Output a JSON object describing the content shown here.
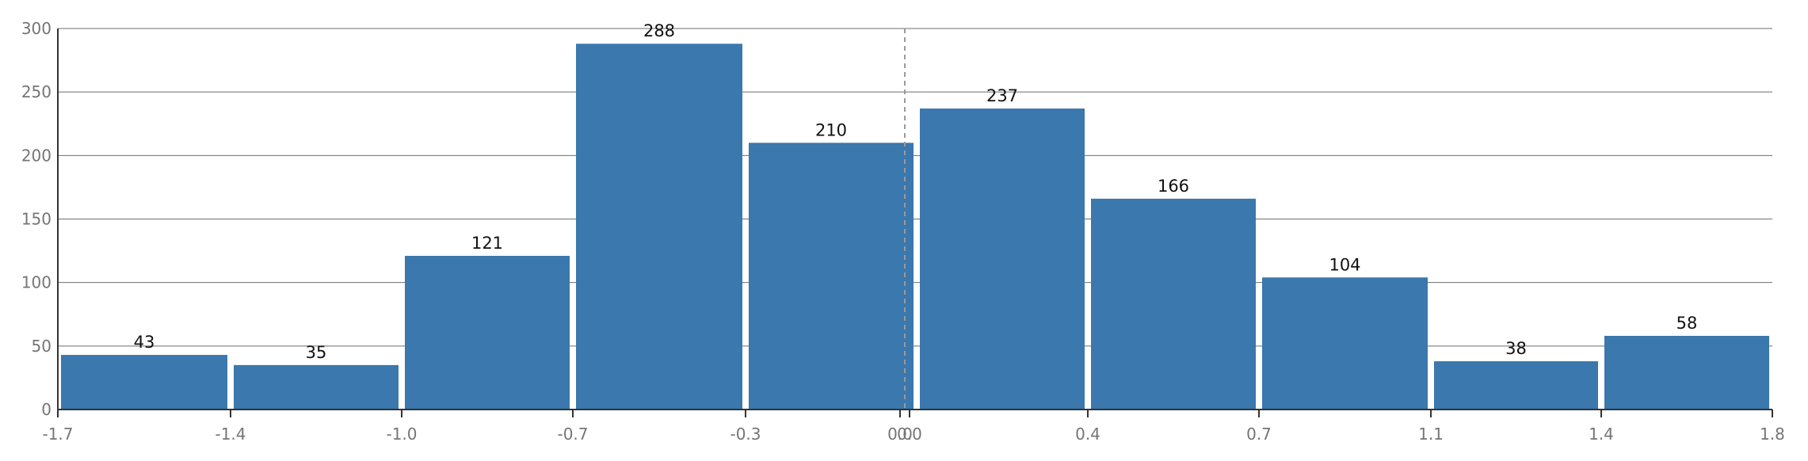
{
  "chart_data": {
    "type": "bar",
    "bins": [
      {
        "x0": -1.7,
        "x1": -1.4,
        "value": 43
      },
      {
        "x0": -1.4,
        "x1": -1.0,
        "value": 35
      },
      {
        "x0": -1.0,
        "x1": -0.7,
        "value": 121
      },
      {
        "x0": -0.7,
        "x1": -0.3,
        "value": 288
      },
      {
        "x0": -0.3,
        "x1": 0.0,
        "value": 210
      },
      {
        "x0": 0.0,
        "x1": 0.4,
        "value": 237
      },
      {
        "x0": 0.4,
        "x1": 0.7,
        "value": 166
      },
      {
        "x0": 0.7,
        "x1": 1.1,
        "value": 104
      },
      {
        "x0": 1.1,
        "x1": 1.4,
        "value": 38
      },
      {
        "x0": 1.4,
        "x1": 1.8,
        "value": 58
      }
    ],
    "data_labels": [
      "43",
      "35",
      "121",
      "288",
      "210",
      "237",
      "166",
      "104",
      "38",
      "58"
    ],
    "x_tick_labels": [
      "-1.7",
      "-1.4",
      "-1.0",
      "-0.7",
      "-0.3",
      "0.0",
      "0.0",
      "0.4",
      "0.7",
      "1.1",
      "1.4",
      "1.8"
    ],
    "y_ticks": [
      0,
      50,
      100,
      150,
      200,
      250,
      300
    ],
    "ylim": [
      0,
      300
    ],
    "xlim": [
      -1.7,
      1.8
    ],
    "reference_line_x": 0.0,
    "grid": true,
    "title": "",
    "xlabel": "",
    "ylabel": "",
    "colors": {
      "bar": "#3a78ae",
      "grid": "#6e6e6e",
      "reference_line": "#9a9a9a",
      "tick_text": "#757575",
      "label_text": "#111111"
    }
  }
}
